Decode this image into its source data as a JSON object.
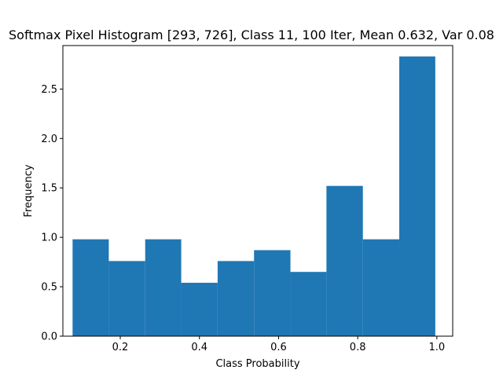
{
  "chart_data": {
    "type": "bar",
    "title": "Softmax Pixel Histogram [293, 726], Class 11, 100 Iter, Mean 0.632, Var 0.08",
    "xlabel": "Class Probability",
    "ylabel": "Frequency",
    "xlim": [
      0.055,
      1.04
    ],
    "ylim": [
      0,
      2.94
    ],
    "xticks": [
      "0.2",
      "0.4",
      "0.6",
      "0.8",
      "1.0"
    ],
    "yticks": [
      "0.0",
      "0.5",
      "1.0",
      "1.5",
      "2.0",
      "2.5"
    ],
    "grid": false,
    "bar_color": "#1f77b4",
    "bins": [
      {
        "x0": 0.0795,
        "x1": 0.171,
        "value": 0.98
      },
      {
        "x0": 0.171,
        "x1": 0.263,
        "value": 0.76
      },
      {
        "x0": 0.263,
        "x1": 0.354,
        "value": 0.98
      },
      {
        "x0": 0.354,
        "x1": 0.446,
        "value": 0.54
      },
      {
        "x0": 0.446,
        "x1": 0.538,
        "value": 0.76
      },
      {
        "x0": 0.538,
        "x1": 0.63,
        "value": 0.87
      },
      {
        "x0": 0.63,
        "x1": 0.721,
        "value": 0.65
      },
      {
        "x0": 0.721,
        "x1": 0.813,
        "value": 1.52
      },
      {
        "x0": 0.813,
        "x1": 0.905,
        "value": 0.98
      },
      {
        "x0": 0.905,
        "x1": 0.996,
        "value": 2.83
      }
    ]
  }
}
